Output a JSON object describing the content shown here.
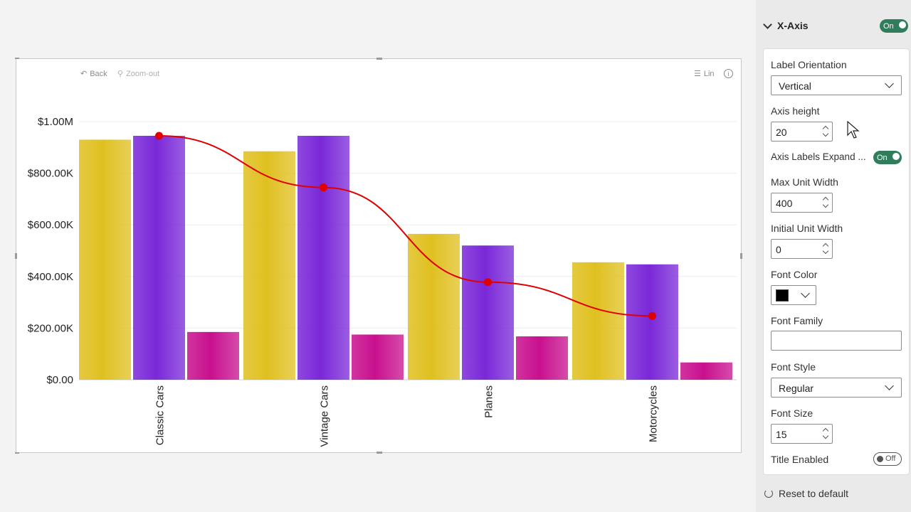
{
  "toolbar": {
    "back_label": "Back",
    "zoom_label": "Zoom-out",
    "lin_label": "Lin",
    "info_label": "i"
  },
  "chart_data": {
    "type": "bar",
    "categories": [
      "Classic Cars",
      "Vintage Cars",
      "Planes",
      "Motorcycles"
    ],
    "series": [
      {
        "values": [
          930000,
          885000,
          565000,
          455000
        ],
        "color": "#e0c020"
      },
      {
        "values": [
          945000,
          945000,
          520000,
          447000
        ],
        "color": "#7a28d8"
      },
      {
        "values": [
          185000,
          175000,
          168000,
          67000
        ],
        "color": "#c8108e"
      }
    ],
    "line": {
      "values": [
        945000,
        745000,
        378000,
        247000
      ],
      "color": "#e00000"
    },
    "y_ticks": [
      "$0.00",
      "$200.00K",
      "$400.00K",
      "$600.00K",
      "$800.00K",
      "$1.00M"
    ],
    "ylim": [
      0,
      1000000
    ],
    "grid": true,
    "legend": "none"
  },
  "pane": {
    "section_title": "X-Axis",
    "section_toggle": "On",
    "label_orientation_label": "Label Orientation",
    "label_orientation_value": "Vertical",
    "axis_height_label": "Axis height",
    "axis_height_value": "20",
    "axis_labels_expand_label": "Axis Labels Expand ...",
    "axis_labels_expand_toggle": "On",
    "max_unit_width_label": "Max Unit Width",
    "max_unit_width_value": "400",
    "initial_unit_width_label": "Initial Unit Width",
    "initial_unit_width_value": "0",
    "font_color_label": "Font Color",
    "font_color_value": "#000000",
    "font_family_label": "Font Family",
    "font_family_value": "",
    "font_style_label": "Font Style",
    "font_style_value": "Regular",
    "font_size_label": "Font Size",
    "font_size_value": "15",
    "title_enabled_label": "Title Enabled",
    "title_enabled_toggle": "Off",
    "reset_label": "Reset to default"
  }
}
